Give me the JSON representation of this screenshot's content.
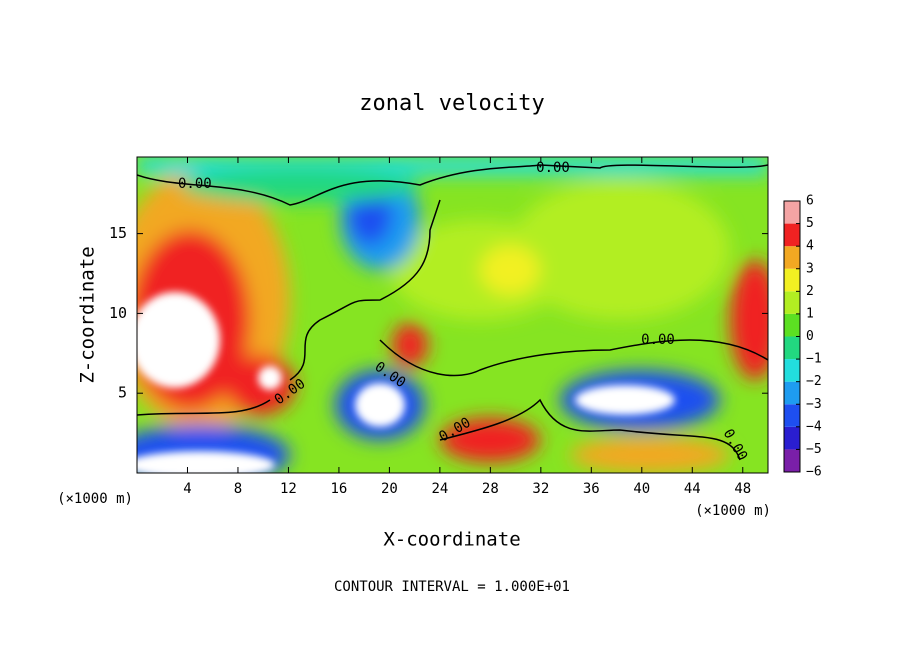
{
  "chart_data": {
    "type": "contour",
    "title": "zonal velocity",
    "xlabel": "X-coordinate",
    "ylabel": "Z-coordinate",
    "xunit": "(×1000 m)",
    "footnote": "CONTOUR INTERVAL = 1.000E+01",
    "xlim": [
      0,
      50
    ],
    "xticks": [
      4,
      8,
      12,
      16,
      20,
      24,
      28,
      32,
      36,
      40,
      44,
      48
    ],
    "ylim": [
      0,
      19.8
    ],
    "yticks": [
      5,
      10,
      15
    ],
    "clim": [
      -6,
      6
    ],
    "cticks": [
      {
        "value": -6,
        "label": "−6"
      },
      {
        "value": -5,
        "label": "−5"
      },
      {
        "value": -4,
        "label": "−4"
      },
      {
        "value": -3,
        "label": "−3"
      },
      {
        "value": -2,
        "label": "−2"
      },
      {
        "value": -1,
        "label": "−1"
      },
      0,
      1,
      2,
      3,
      4,
      5,
      6
    ],
    "colors": [
      "#7a1fa8",
      "#2a1ed0",
      "#1e4ff0",
      "#1e9cf0",
      "#22dede",
      "#22d880",
      "#5ce022",
      "#b2ee22",
      "#f2f022",
      "#f2a822",
      "#f02222",
      "#f4a4a4"
    ],
    "contour_labels": [
      "0.00",
      "0.00",
      "0.00",
      "0.00",
      "0.00",
      "0.00",
      "0.00"
    ]
  }
}
